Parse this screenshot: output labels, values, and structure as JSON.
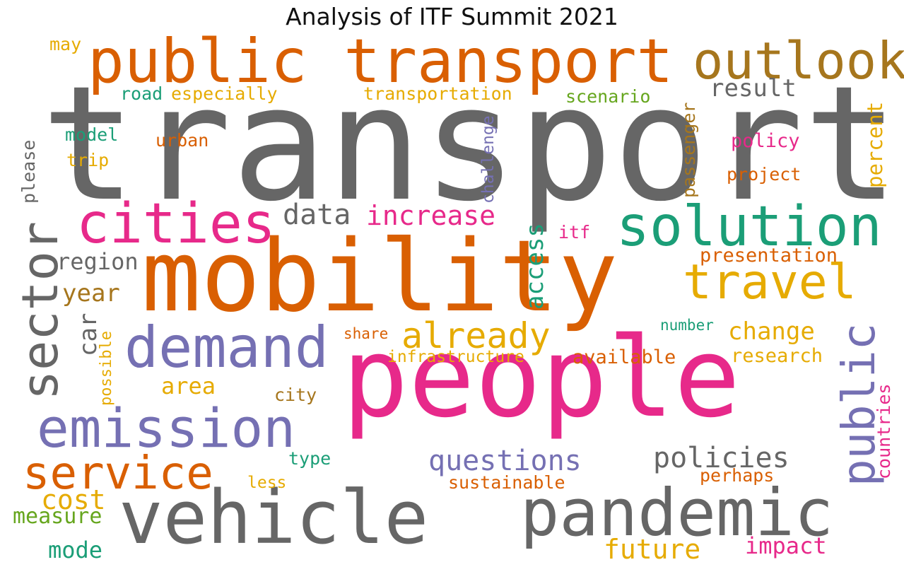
{
  "title": "Analysis of ITF Summit 2021",
  "palette": [
    "#666666",
    "#d95f02",
    "#e7298a",
    "#7570b3",
    "#1b9e77",
    "#e6ab02",
    "#a6761d",
    "#66a61e"
  ],
  "words": {
    "transport": "transport",
    "mobility": "mobility",
    "people": "people",
    "vehicle": "vehicle",
    "pandemic": "pandemic",
    "public_transport": "public transport",
    "outlook": "outlook",
    "solution": "solution",
    "cities": "cities",
    "demand": "demand",
    "emission": "emission",
    "service": "service",
    "travel": "travel",
    "sector": "sector",
    "public": "public",
    "already": "already",
    "increase": "increase",
    "data": "data",
    "questions": "questions",
    "policies": "policies",
    "change": "change",
    "result": "result",
    "year": "year",
    "region": "region",
    "cost": "cost",
    "area": "area",
    "future": "future",
    "impact": "impact",
    "mode": "mode",
    "measure": "measure",
    "presentation": "presentation",
    "research": "research",
    "available": "available",
    "infrastructure": "infrastructure",
    "sustainable": "sustainable",
    "perhaps": "perhaps",
    "project": "project",
    "policy": "policy",
    "transportation": "transportation",
    "especially": "especially",
    "scenario": "scenario",
    "road": "road",
    "model": "model",
    "trip": "trip",
    "urban": "urban",
    "may": "may",
    "itf": "itf",
    "number": "number",
    "share": "share",
    "city": "city",
    "type": "type",
    "less": "less",
    "access": "access",
    "car": "car",
    "possible": "possible",
    "please": "please",
    "challenge": "challenge",
    "passenger": "passenger",
    "percent": "percent",
    "countries": "countries"
  }
}
